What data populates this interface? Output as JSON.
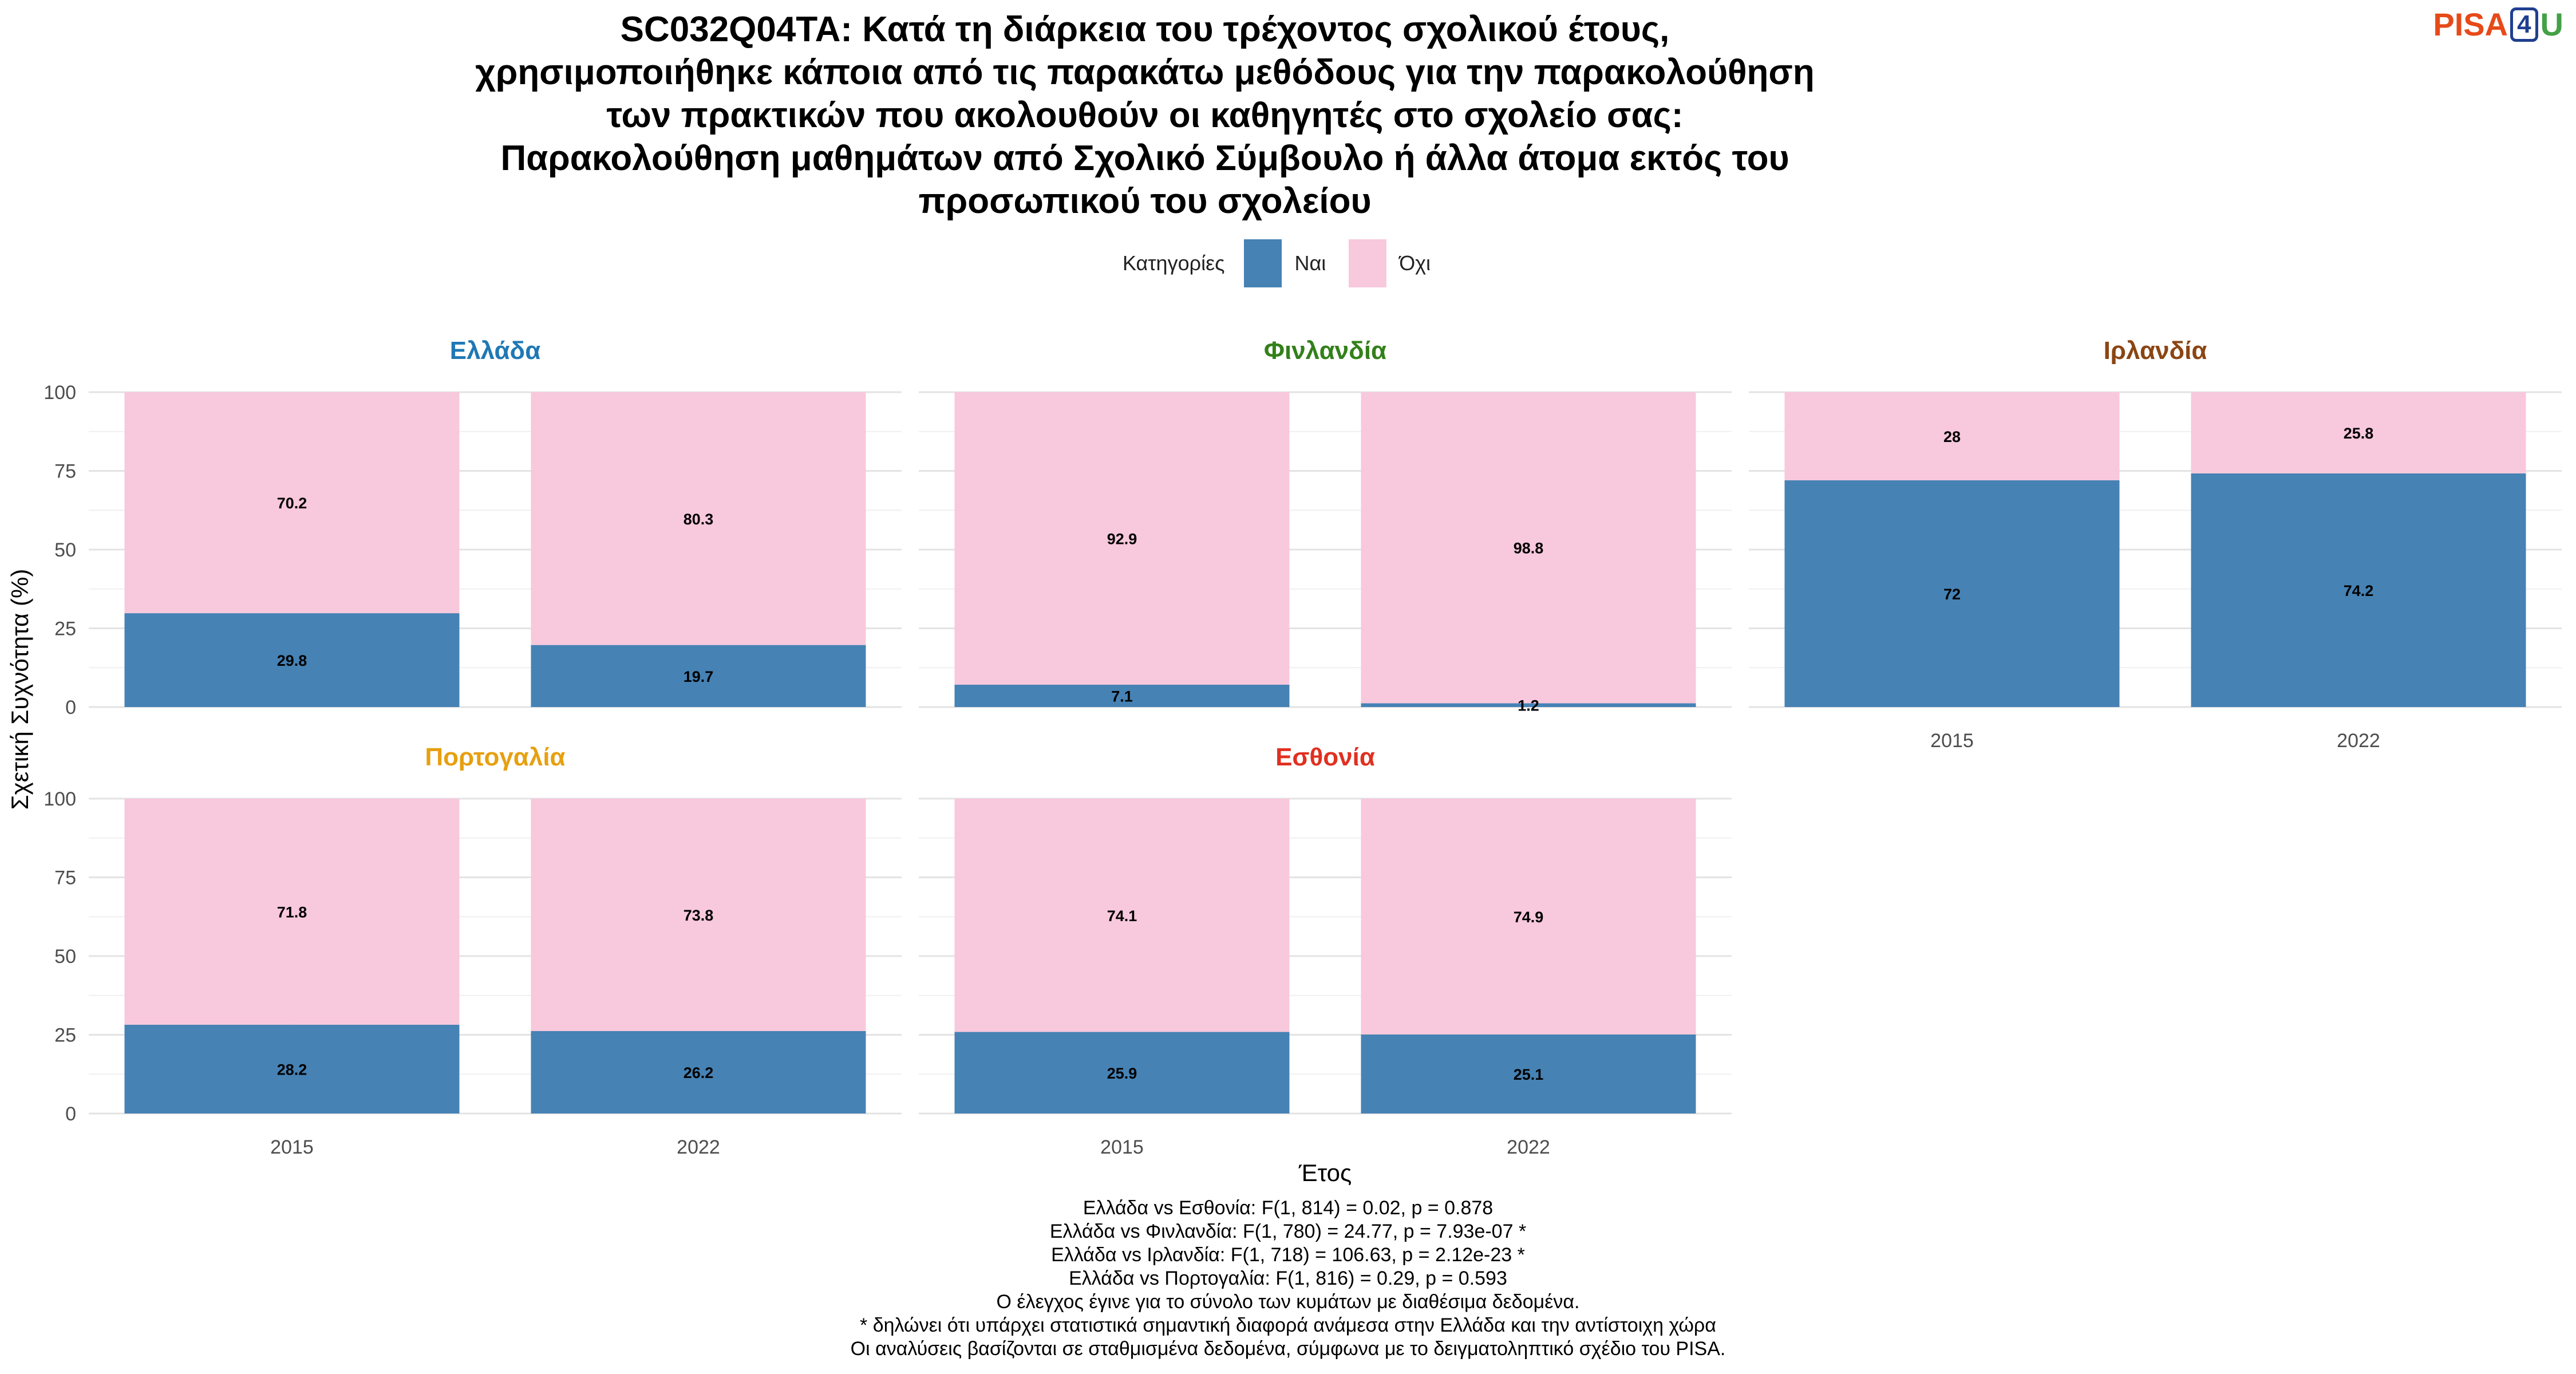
{
  "title_lines": [
    "SC032Q04TA: Κατά τη διάρκεια του τρέχοντος σχολικού έτους,",
    "χρησιμοποιήθηκε κάποια από τις παρακάτω μεθόδους για την παρακολούθηση",
    "των πρακτικών που ακολουθούν οι καθηγητές στο σχολείο σας:",
    "Παρακολούθηση μαθημάτων από Σχολικό Σύμβουλο ή άλλα άτομα εκτός του",
    "προσωπικού του σχολείου"
  ],
  "logo": {
    "part1": "PISA",
    "part2": "4",
    "part3": "U"
  },
  "legend": {
    "title": "Κατηγορίες",
    "items": [
      {
        "label": "Ναι",
        "color": "#4682b4"
      },
      {
        "label": "Όχι",
        "color": "#f8c8dc"
      }
    ]
  },
  "chart_data": {
    "type": "bar",
    "stacked": true,
    "xlabel": "Έτος",
    "ylabel": "Σχετική Συχνότητα (%)",
    "ylim": [
      0,
      100
    ],
    "yticks": [
      0,
      25,
      50,
      75,
      100
    ],
    "categories": [
      "2015",
      "2022"
    ],
    "series_names": [
      "Ναι",
      "Όχι"
    ],
    "colors": {
      "Ναι": "#4682b4",
      "Όχι": "#f8c8dc"
    },
    "grid": true,
    "legend_position": "top",
    "panels": [
      {
        "name": "Ελλάδα",
        "title_color": "#1f78b4",
        "series": [
          {
            "name": "Ναι",
            "values": [
              29.8,
              19.7
            ]
          },
          {
            "name": "Όχι",
            "values": [
              70.2,
              80.3
            ]
          }
        ]
      },
      {
        "name": "Φινλανδία",
        "title_color": "#33801a",
        "series": [
          {
            "name": "Ναι",
            "values": [
              7.1,
              1.2
            ]
          },
          {
            "name": "Όχι",
            "values": [
              92.9,
              98.8
            ]
          }
        ]
      },
      {
        "name": "Ιρλανδία",
        "title_color": "#8b4513",
        "series": [
          {
            "name": "Ναι",
            "values": [
              72,
              74.2
            ]
          },
          {
            "name": "Όχι",
            "values": [
              28,
              25.8
            ]
          }
        ]
      },
      {
        "name": "Πορτογαλία",
        "title_color": "#e6a010",
        "series": [
          {
            "name": "Ναι",
            "values": [
              28.2,
              26.2
            ]
          },
          {
            "name": "Όχι",
            "values": [
              71.8,
              73.8
            ]
          }
        ]
      },
      {
        "name": "Εσθονία",
        "title_color": "#e03020",
        "series": [
          {
            "name": "Ναι",
            "values": [
              25.9,
              25.1
            ]
          },
          {
            "name": "Όχι",
            "values": [
              74.1,
              74.9
            ]
          }
        ]
      }
    ]
  },
  "footer_lines": [
    "Ελλάδα vs Εσθονία: F(1, 814) = 0.02, p = 0.878",
    "Ελλάδα vs Φινλανδία: F(1, 780) = 24.77, p = 7.93e-07 *",
    "Ελλάδα vs Ιρλανδία: F(1, 718) = 106.63, p = 2.12e-23 *",
    "Ελλάδα vs Πορτογαλία: F(1, 816) = 0.29, p = 0.593",
    "Ο έλεγχος έγινε για το σύνολο των κυμάτων με διαθέσιμα δεδομένα.",
    "* δηλώνει ότι υπάρχει στατιστικά σημαντική διαφορά ανάμεσα στην Ελλάδα και την αντίστοιχη χώρα",
    "Οι αναλύσεις βασίζονται σε σταθμισμένα δεδομένα, σύμφωνα με το δειγματοληπτικό σχέδιο του PISA."
  ]
}
